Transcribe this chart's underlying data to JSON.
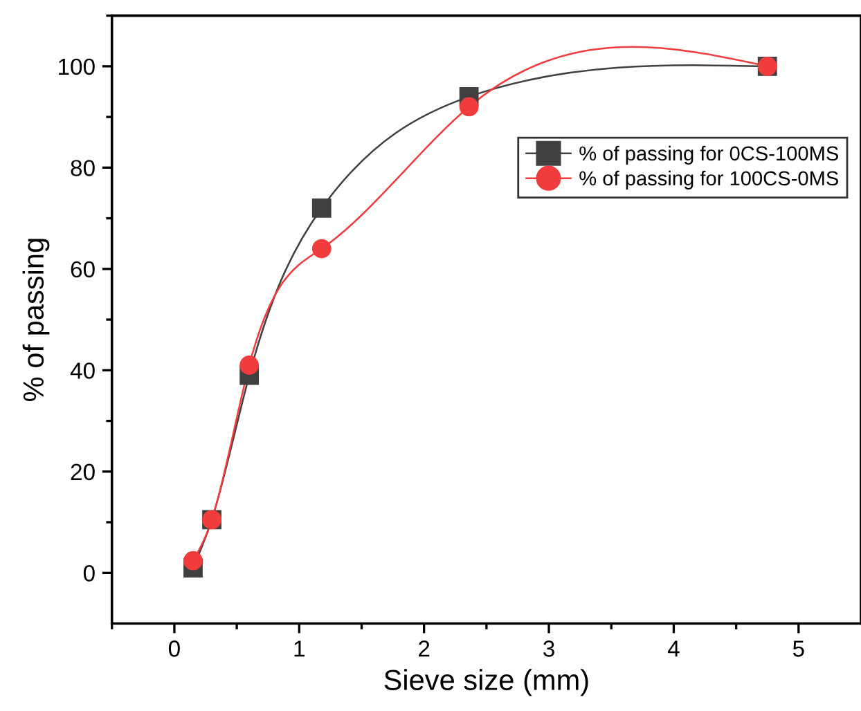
{
  "chart_data": {
    "type": "line",
    "xlabel": "Sieve size (mm)",
    "ylabel": "% of passing",
    "x": [
      0.15,
      0.3,
      0.6,
      1.18,
      2.36,
      4.75
    ],
    "series": [
      {
        "name": "% of passing for 0CS-100MS",
        "color": "#404040",
        "values": [
          1,
          10.5,
          39,
          72,
          94,
          100
        ],
        "marker": "square"
      },
      {
        "name": "% of passing for 100CS-0MS",
        "color": "#f03c3c",
        "values": [
          2.4,
          10.5,
          41,
          64,
          92,
          100
        ],
        "marker": "circle"
      }
    ],
    "xlim": [
      -0.5,
      5.5
    ],
    "xticks": [
      0,
      1,
      2,
      3,
      4,
      5
    ],
    "ylim": [
      -10,
      110
    ],
    "yticks": [
      0,
      20,
      40,
      60,
      80,
      100
    ],
    "grid": false,
    "legend": "right",
    "line_style": "solid"
  }
}
